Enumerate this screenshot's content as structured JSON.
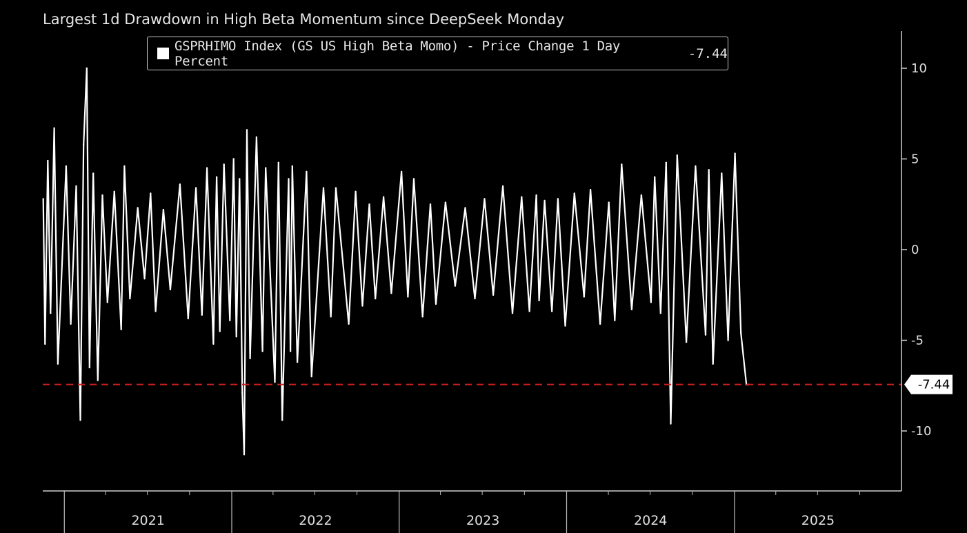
{
  "chart_data": {
    "type": "line",
    "title": "Largest 1d Drawdown in High Beta Momentum since DeepSeek Monday",
    "legend": {
      "label": "GSPRHIMO Index (GS US High Beta Momo) - Price Change 1 Day Percent",
      "last_value": "-7.44",
      "placement": "top-left"
    },
    "y_axis": {
      "position": "right",
      "ticks": [
        10,
        5,
        0,
        -5,
        -10
      ],
      "tick_labels": [
        "10",
        "5",
        "0",
        "-5",
        "-10"
      ],
      "ylim": [
        -13,
        12
      ]
    },
    "x_axis": {
      "tick_labels": [
        "2021",
        "2022",
        "2023",
        "2024",
        "2025"
      ],
      "xlim": [
        "2020-11-15",
        "2025-12-31"
      ]
    },
    "reference_line": {
      "value": -7.44,
      "label": "-7.44",
      "color": "#cc1f1f",
      "style": "dashed"
    },
    "series": [
      {
        "color": "#ffffff",
        "x": [
          "2020-11-16",
          "2020-11-20",
          "2020-11-26",
          "2020-12-02",
          "2020-12-10",
          "2020-12-18",
          "2021-01-05",
          "2021-01-15",
          "2021-01-27",
          "2021-02-05",
          "2021-02-12",
          "2021-02-19",
          "2021-02-25",
          "2021-03-05",
          "2021-03-15",
          "2021-03-25",
          "2021-04-05",
          "2021-04-20",
          "2021-05-05",
          "2021-05-12",
          "2021-05-24",
          "2021-06-10",
          "2021-06-25",
          "2021-07-08",
          "2021-07-19",
          "2021-08-05",
          "2021-08-20",
          "2021-09-10",
          "2021-09-28",
          "2021-10-15",
          "2021-10-28",
          "2021-11-08",
          "2021-11-22",
          "2021-11-29",
          "2021-12-06",
          "2021-12-15",
          "2021-12-28",
          "2022-01-05",
          "2022-01-11",
          "2022-01-18",
          "2022-01-24",
          "2022-01-28",
          "2022-02-03",
          "2022-02-10",
          "2022-02-24",
          "2022-03-09",
          "2022-03-16",
          "2022-04-05",
          "2022-04-13",
          "2022-04-21",
          "2022-05-05",
          "2022-05-09",
          "2022-05-13",
          "2022-05-24",
          "2022-06-13",
          "2022-06-24",
          "2022-07-20",
          "2022-08-05",
          "2022-08-16",
          "2022-09-13",
          "2022-09-28",
          "2022-10-13",
          "2022-10-28",
          "2022-11-10",
          "2022-11-28",
          "2022-12-15",
          "2023-01-06",
          "2023-01-20",
          "2023-02-02",
          "2023-02-21",
          "2023-03-10",
          "2023-03-22",
          "2023-04-12",
          "2023-05-03",
          "2023-05-25",
          "2023-06-15",
          "2023-07-06",
          "2023-07-25",
          "2023-08-15",
          "2023-09-05",
          "2023-09-25",
          "2023-10-12",
          "2023-10-27",
          "2023-11-02",
          "2023-11-14",
          "2023-11-30",
          "2023-12-13",
          "2023-12-29",
          "2024-01-18",
          "2024-02-08",
          "2024-02-22",
          "2024-03-14",
          "2024-04-02",
          "2024-04-15",
          "2024-04-30",
          "2024-05-22",
          "2024-06-12",
          "2024-07-03",
          "2024-07-11",
          "2024-07-24",
          "2024-08-05",
          "2024-08-15",
          "2024-08-29",
          "2024-09-18",
          "2024-10-08",
          "2024-10-30",
          "2024-11-06",
          "2024-11-15",
          "2024-12-04",
          "2024-12-18",
          "2025-01-02",
          "2025-01-15",
          "2025-01-27",
          "2025-01-31"
        ],
        "values": [
          2.8,
          -5.2,
          4.9,
          -3.5,
          6.7,
          -6.3,
          4.6,
          -4.1,
          3.5,
          -9.4,
          5.8,
          10.0,
          -6.5,
          4.2,
          -7.2,
          3.0,
          -2.9,
          3.2,
          -4.4,
          4.6,
          -2.7,
          2.3,
          -1.6,
          3.1,
          -3.4,
          2.2,
          -2.2,
          3.6,
          -3.8,
          3.4,
          -3.6,
          4.5,
          -5.2,
          4.0,
          -4.5,
          4.7,
          -3.9,
          5.0,
          -4.8,
          3.9,
          -7.9,
          -11.3,
          6.6,
          -6.0,
          6.2,
          -5.6,
          4.5,
          -7.3,
          4.8,
          -9.4,
          3.9,
          -5.6,
          4.6,
          -6.2,
          4.3,
          -7.0,
          3.4,
          -3.7,
          3.4,
          -4.1,
          3.2,
          -3.1,
          2.5,
          -2.7,
          2.9,
          -2.4,
          4.3,
          -2.6,
          3.9,
          -3.7,
          2.5,
          -3.0,
          2.6,
          -2.0,
          2.3,
          -2.7,
          2.8,
          -2.5,
          3.5,
          -3.5,
          2.9,
          -3.4,
          3.0,
          -2.8,
          2.7,
          -3.4,
          2.8,
          -4.2,
          3.1,
          -2.6,
          3.3,
          -4.1,
          2.6,
          -3.9,
          4.7,
          -3.3,
          3.0,
          -2.9,
          4.0,
          -3.5,
          4.8,
          -9.6,
          5.2,
          -5.1,
          4.6,
          -4.7,
          4.4,
          -6.3,
          4.2,
          -5.0,
          5.3,
          -4.6,
          -7.44,
          -7.44
        ]
      }
    ]
  }
}
